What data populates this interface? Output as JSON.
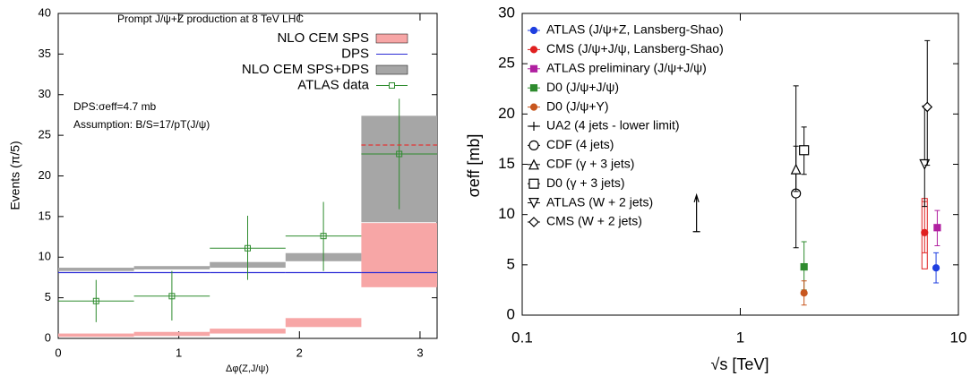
{
  "chart_data": [
    {
      "type": "histogram",
      "title": "Prompt J/ψ+Z production at 8 TeV LHC",
      "annotations": [
        "DPS:σeff=4.7 mb",
        "Assumption: B/S=17/pT(J/ψ)"
      ],
      "x_label": "Δφ(Z,J/ψ)",
      "y_label": "Events (π/5)",
      "bins": [
        0,
        0.6283,
        1.2566,
        1.885,
        2.5133,
        3.1416
      ],
      "xlim": [
        0,
        3.1416
      ],
      "xticks": [
        0,
        1,
        2,
        3
      ],
      "ylim": [
        0,
        40
      ],
      "yticks": [
        0,
        5,
        10,
        15,
        20,
        25,
        30,
        35,
        40
      ],
      "legend": "upper right",
      "series": [
        {
          "name": "NLO CEM SPS",
          "color": "#f7a6a6",
          "style": "band",
          "low": [
            0.2,
            0.3,
            0.6,
            1.4,
            6.3
          ],
          "high": [
            0.6,
            0.8,
            1.2,
            2.5,
            14.2
          ]
        },
        {
          "name": "DPS",
          "color": "#2b2bd6",
          "style": "line",
          "values": [
            8.1,
            8.1,
            8.1,
            8.1,
            8.1
          ]
        },
        {
          "name": "NLO CEM SPS+DPS",
          "color": "#a6a6a6",
          "style": "band",
          "low": [
            8.3,
            8.5,
            8.7,
            9.5,
            14.3
          ],
          "high": [
            8.7,
            8.9,
            9.4,
            10.5,
            27.4
          ]
        },
        {
          "name": "ATLAS data",
          "color": "#2e8b2e",
          "style": "points",
          "values": [
            4.6,
            5.2,
            11.1,
            12.6,
            22.7
          ],
          "err_low": [
            2.6,
            3.0,
            3.9,
            4.3,
            6.8
          ],
          "err_high": [
            2.6,
            3.1,
            4.0,
            4.2,
            6.8
          ]
        }
      ],
      "dashed_line": {
        "color": "#e33333",
        "values": [
          null,
          null,
          null,
          null,
          23.8
        ]
      }
    },
    {
      "type": "scatter",
      "x_label": "√s [TeV]",
      "y_label": "σeff [mb]",
      "xscale": "log",
      "xlim": [
        0.1,
        10
      ],
      "xticks": [
        0.1,
        1,
        10
      ],
      "ylim": [
        0,
        30
      ],
      "yticks": [
        0,
        5,
        10,
        15,
        20,
        25,
        30
      ],
      "legend": "upper left",
      "series": [
        {
          "name": "ATLAS (J/ψ+Z, Lansberg-Shao)",
          "color": "#1f3fe0",
          "marker": "circle-filled",
          "x": [
            7.9
          ],
          "values": [
            4.7
          ],
          "err_low": [
            1.5
          ],
          "err_high": [
            1.5
          ]
        },
        {
          "name": "CMS (J/ψ+J/ψ, Lansberg-Shao)",
          "color": "#e02020",
          "marker": "circle-filled",
          "x": [
            7
          ],
          "values": [
            8.2
          ],
          "err_low": [
            2.0
          ],
          "err_high": [
            3.1
          ],
          "sys_low": [
            4.6
          ],
          "sys_high": [
            11.6
          ]
        },
        {
          "name": "ATLAS preliminary (J/ψ+J/ψ)",
          "color": "#b020a0",
          "marker": "square-filled",
          "x": [
            8
          ],
          "values": [
            8.7
          ],
          "err_low": [
            1.8
          ],
          "err_high": [
            1.7
          ]
        },
        {
          "name": "D0 (J/ψ+J/ψ)",
          "color": "#2e8b2e",
          "marker": "square-filled",
          "x": [
            1.96
          ],
          "values": [
            4.8
          ],
          "err_low": [
            2.3
          ],
          "err_high": [
            2.5
          ]
        },
        {
          "name": "D0 (J/ψ+Υ)",
          "color": "#c8561e",
          "marker": "circle-filled",
          "x": [
            1.96
          ],
          "values": [
            2.2
          ],
          "err_low": [
            1.2
          ],
          "err_high": [
            1.2
          ]
        },
        {
          "name": "UA2 (4 jets - lower limit)",
          "color": "#000000",
          "marker": "arrow",
          "x": [
            0.63
          ],
          "values": [
            8.3
          ]
        },
        {
          "name": "CDF (4 jets)",
          "color": "#000000",
          "marker": "circle-open",
          "x": [
            1.8
          ],
          "values": [
            12.1
          ],
          "err_low": [
            5.4
          ],
          "err_high": [
            10.7
          ]
        },
        {
          "name": "CDF (γ + 3 jets)",
          "color": "#000000",
          "marker": "triangle-open",
          "x": [
            1.8
          ],
          "values": [
            14.5
          ],
          "err_low": [
            2.2
          ],
          "err_high": [
            2.3
          ]
        },
        {
          "name": "D0 (γ + 3 jets)",
          "color": "#000000",
          "marker": "square-open",
          "x": [
            1.96
          ],
          "values": [
            16.4
          ],
          "err_low": [
            2.4
          ],
          "err_high": [
            2.3
          ]
        },
        {
          "name": "ATLAS (W + 2 jets)",
          "color": "#000000",
          "marker": "triangle-down-open",
          "x": [
            7
          ],
          "values": [
            15
          ],
          "err_low": [
            4.2
          ],
          "err_high": [
            5.8
          ]
        },
        {
          "name": "CMS (W + 2 jets)",
          "color": "#000000",
          "marker": "diamond-open",
          "x": [
            7.2
          ],
          "values": [
            20.7
          ],
          "err_low": [
            5.8
          ],
          "err_high": [
            6.6
          ]
        }
      ]
    }
  ]
}
